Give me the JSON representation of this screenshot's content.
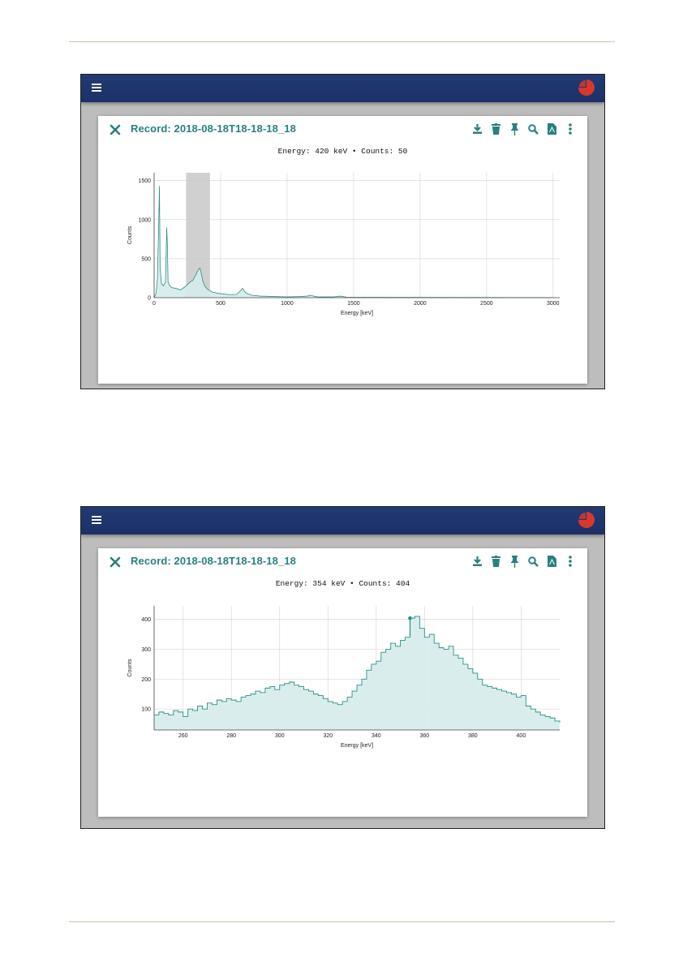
{
  "colors": {
    "accent": "#2a8f85",
    "appbar": "#1f3670",
    "fill": "#d6ebeb",
    "selection": "#c8c8c8"
  },
  "panels": [
    {
      "title": "Record: 2018-08-18T18-18-18_18",
      "readout": "Energy:  420 keV • Counts: 50",
      "toolbar_icons": [
        "download-icon",
        "trash-icon",
        "pin-icon",
        "search-icon",
        "pdf-icon",
        "more-vert-icon"
      ],
      "chart_data": {
        "type": "line",
        "xlabel": "Energy [keV]",
        "ylabel": "Counts",
        "xlim": [
          0,
          3050
        ],
        "ylim": [
          0,
          1600
        ],
        "xticks": [
          0,
          500,
          1000,
          1500,
          2000,
          2500,
          3000
        ],
        "yticks": [
          0,
          500,
          1000,
          1500
        ],
        "selection_range": [
          240,
          420
        ],
        "x": [
          0,
          15,
          25,
          35,
          40,
          45,
          55,
          70,
          85,
          95,
          100,
          105,
          115,
          130,
          160,
          200,
          240,
          270,
          290,
          310,
          330,
          345,
          355,
          365,
          380,
          400,
          440,
          500,
          560,
          620,
          650,
          665,
          680,
          700,
          740,
          800,
          900,
          1000,
          1100,
          1150,
          1180,
          1200,
          1230,
          1300,
          1350,
          1400,
          1420,
          1450,
          1500,
          2000,
          2500,
          3000
        ],
        "y": [
          0,
          60,
          250,
          1000,
          1430,
          400,
          180,
          150,
          200,
          900,
          650,
          200,
          160,
          130,
          120,
          100,
          150,
          200,
          220,
          280,
          350,
          380,
          310,
          220,
          150,
          110,
          70,
          50,
          40,
          40,
          90,
          120,
          80,
          50,
          30,
          20,
          15,
          10,
          15,
          20,
          30,
          20,
          10,
          10,
          10,
          20,
          15,
          5,
          5,
          3,
          2,
          1
        ]
      }
    },
    {
      "title": "Record: 2018-08-18T18-18-18_18",
      "readout": "Energy:  354 keV • Counts: 404",
      "toolbar_icons": [
        "download-icon",
        "trash-icon",
        "pin-icon",
        "search-icon",
        "pdf-icon",
        "more-vert-icon"
      ],
      "chart_data": {
        "type": "line",
        "xlabel": "Energy [keV]",
        "ylabel": "Counts",
        "xlim": [
          248,
          416
        ],
        "ylim": [
          30,
          445
        ],
        "xticks": [
          260,
          280,
          300,
          320,
          340,
          360,
          380,
          400
        ],
        "yticks": [
          100,
          200,
          300,
          400
        ],
        "marker": {
          "x": 354,
          "y": 404
        },
        "x": [
          248,
          250,
          252,
          254,
          256,
          258,
          260,
          262,
          264,
          266,
          268,
          270,
          272,
          274,
          276,
          278,
          280,
          282,
          284,
          286,
          288,
          290,
          292,
          294,
          296,
          298,
          300,
          302,
          304,
          306,
          308,
          310,
          312,
          314,
          316,
          318,
          320,
          322,
          324,
          326,
          328,
          330,
          332,
          334,
          336,
          338,
          340,
          342,
          344,
          346,
          348,
          350,
          352,
          354,
          356,
          358,
          360,
          362,
          364,
          366,
          368,
          370,
          372,
          374,
          376,
          378,
          380,
          382,
          384,
          386,
          388,
          390,
          392,
          394,
          396,
          398,
          400,
          402,
          404,
          406,
          408,
          410,
          412,
          414,
          416
        ],
        "y": [
          80,
          90,
          85,
          80,
          95,
          90,
          75,
          100,
          95,
          110,
          100,
          120,
          115,
          130,
          125,
          135,
          130,
          125,
          140,
          145,
          150,
          160,
          155,
          170,
          175,
          165,
          180,
          185,
          190,
          180,
          175,
          165,
          160,
          150,
          145,
          135,
          125,
          120,
          115,
          125,
          140,
          160,
          180,
          200,
          230,
          250,
          260,
          290,
          300,
          320,
          310,
          330,
          340,
          404,
          410,
          370,
          340,
          350,
          320,
          305,
          300,
          310,
          280,
          270,
          250,
          235,
          220,
          200,
          180,
          175,
          170,
          165,
          160,
          155,
          150,
          140,
          145,
          110,
          100,
          90,
          80,
          75,
          70,
          60,
          55
        ]
      }
    }
  ]
}
